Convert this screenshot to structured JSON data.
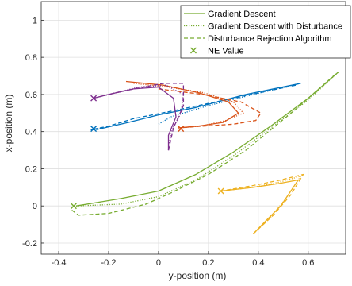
{
  "chart_data": {
    "type": "line",
    "xlabel": "y-position (m)",
    "ylabel": "x-position (m)",
    "xlim": [
      -0.47,
      0.75
    ],
    "ylim": [
      -0.26,
      1.1
    ],
    "xticks": [
      -0.4,
      -0.2,
      0,
      0.2,
      0.4,
      0.6
    ],
    "yticks": [
      -0.2,
      0,
      0.2,
      0.4,
      0.6,
      0.8,
      1
    ],
    "xtick_labels": [
      "-0.4",
      "-0.2",
      "0",
      "0.2",
      "0.4",
      "0.6"
    ],
    "ytick_labels": [
      "-0.2",
      "0",
      "0.2",
      "0.4",
      "0.6",
      "0.8",
      "1"
    ],
    "grid": true,
    "legend": {
      "position": "top-right",
      "entries": [
        {
          "label": "Gradient Descent",
          "style": "solid",
          "color": "#77ac30"
        },
        {
          "label": "Gradient Descent with Disturbance",
          "style": "dotted",
          "color": "#77ac30"
        },
        {
          "label": "Disturbance Rejection Algorithm",
          "style": "dashed",
          "color": "#77ac30"
        },
        {
          "label": "NE Value",
          "style": "marker-x",
          "color": "#77ac30"
        }
      ]
    },
    "series": [
      {
        "color": "#77ac30",
        "style": "solid",
        "x": [
          0.72,
          0.6,
          0.45,
          0.3,
          0.15,
          0.0,
          -0.15,
          -0.33
        ],
        "y": [
          0.72,
          0.58,
          0.43,
          0.29,
          0.17,
          0.08,
          0.04,
          0.0
        ]
      },
      {
        "color": "#77ac30",
        "style": "dotted",
        "x": [
          0.72,
          0.6,
          0.45,
          0.3,
          0.15,
          0.0,
          -0.15,
          -0.33
        ],
        "y": [
          0.72,
          0.57,
          0.42,
          0.27,
          0.14,
          0.05,
          0.01,
          0.0
        ]
      },
      {
        "color": "#77ac30",
        "style": "dashed",
        "x": [
          0.71,
          0.55,
          0.35,
          0.2,
          0.05,
          -0.05,
          -0.2,
          -0.32,
          -0.35
        ],
        "y": [
          0.71,
          0.52,
          0.3,
          0.17,
          0.07,
          0.01,
          -0.04,
          -0.05,
          -0.02
        ]
      },
      {
        "color": "#0072bd",
        "style": "solid",
        "x": [
          0.57,
          0.35,
          0.15,
          0.0,
          -0.12,
          -0.25
        ],
        "y": [
          0.66,
          0.6,
          0.53,
          0.49,
          0.45,
          0.41
        ]
      },
      {
        "color": "#0072bd",
        "style": "dotted",
        "x": [
          0.57,
          0.38,
          0.2,
          0.05,
          0.0
        ],
        "y": [
          0.66,
          0.6,
          0.54,
          0.48,
          0.44
        ]
      },
      {
        "color": "#0072bd",
        "style": "dashed",
        "x": [
          0.55,
          0.3,
          0.05,
          -0.1,
          -0.2,
          -0.27,
          -0.25
        ],
        "y": [
          0.65,
          0.58,
          0.51,
          0.47,
          0.43,
          0.41,
          0.41
        ]
      },
      {
        "color": "#d95319",
        "style": "solid",
        "x": [
          -0.13,
          0.02,
          0.16,
          0.28,
          0.32,
          0.26,
          0.16,
          0.08
        ],
        "y": [
          0.67,
          0.65,
          0.61,
          0.56,
          0.5,
          0.45,
          0.43,
          0.42
        ]
      },
      {
        "color": "#d95319",
        "style": "dotted",
        "x": [
          -0.1,
          0.04,
          0.18,
          0.3,
          0.34,
          0.27,
          0.17,
          0.08
        ],
        "y": [
          0.66,
          0.64,
          0.61,
          0.56,
          0.5,
          0.46,
          0.43,
          0.42
        ]
      },
      {
        "color": "#d95319",
        "style": "dashed",
        "x": [
          0.0,
          0.18,
          0.33,
          0.41,
          0.39,
          0.3,
          0.18,
          0.08
        ],
        "y": [
          0.63,
          0.6,
          0.56,
          0.5,
          0.46,
          0.44,
          0.43,
          0.42
        ]
      },
      {
        "color": "#7e2f8e",
        "style": "solid",
        "x": [
          0.04,
          0.04,
          0.07,
          0.06,
          0.0,
          -0.1,
          -0.2,
          -0.26
        ],
        "y": [
          0.3,
          0.38,
          0.48,
          0.58,
          0.64,
          0.63,
          0.6,
          0.58
        ]
      },
      {
        "color": "#7e2f8e",
        "style": "dotted",
        "x": [
          0.04,
          0.05,
          0.09,
          0.1,
          0.03,
          -0.08,
          -0.2,
          -0.26
        ],
        "y": [
          0.3,
          0.4,
          0.5,
          0.6,
          0.65,
          0.64,
          0.6,
          0.58
        ]
      },
      {
        "color": "#7e2f8e",
        "style": "dashed",
        "x": [
          0.04,
          0.06,
          0.1,
          0.1,
          0.02,
          -0.1,
          -0.2,
          -0.26
        ],
        "y": [
          0.3,
          0.42,
          0.54,
          0.66,
          0.66,
          0.63,
          0.6,
          0.58
        ]
      },
      {
        "color": "#edb120",
        "style": "solid",
        "x": [
          0.38,
          0.43,
          0.49,
          0.56,
          0.48,
          0.38,
          0.25
        ],
        "y": [
          -0.15,
          -0.08,
          0.0,
          0.14,
          0.12,
          0.1,
          0.08
        ]
      },
      {
        "color": "#edb120",
        "style": "dotted",
        "x": [
          0.38,
          0.45,
          0.51,
          0.57,
          0.49,
          0.38,
          0.25
        ],
        "y": [
          -0.15,
          -0.06,
          0.04,
          0.16,
          0.13,
          0.1,
          0.08
        ]
      },
      {
        "color": "#edb120",
        "style": "dashed",
        "x": [
          0.38,
          0.46,
          0.53,
          0.58,
          0.49,
          0.38,
          0.25
        ],
        "y": [
          -0.15,
          -0.05,
          0.06,
          0.17,
          0.14,
          0.11,
          0.08
        ]
      }
    ],
    "markers": [
      {
        "name": "NE Value",
        "symbol": "x",
        "color": "#77ac30",
        "x": -0.34,
        "y": 0.0
      },
      {
        "name": "NE Value",
        "symbol": "x",
        "color": "#0072bd",
        "x": -0.26,
        "y": 0.415
      },
      {
        "name": "NE Value",
        "symbol": "x",
        "color": "#d95319",
        "x": 0.09,
        "y": 0.415
      },
      {
        "name": "NE Value",
        "symbol": "x",
        "color": "#7e2f8e",
        "x": -0.26,
        "y": 0.58
      },
      {
        "name": "NE Value",
        "symbol": "x",
        "color": "#edb120",
        "x": 0.25,
        "y": 0.08
      }
    ]
  }
}
